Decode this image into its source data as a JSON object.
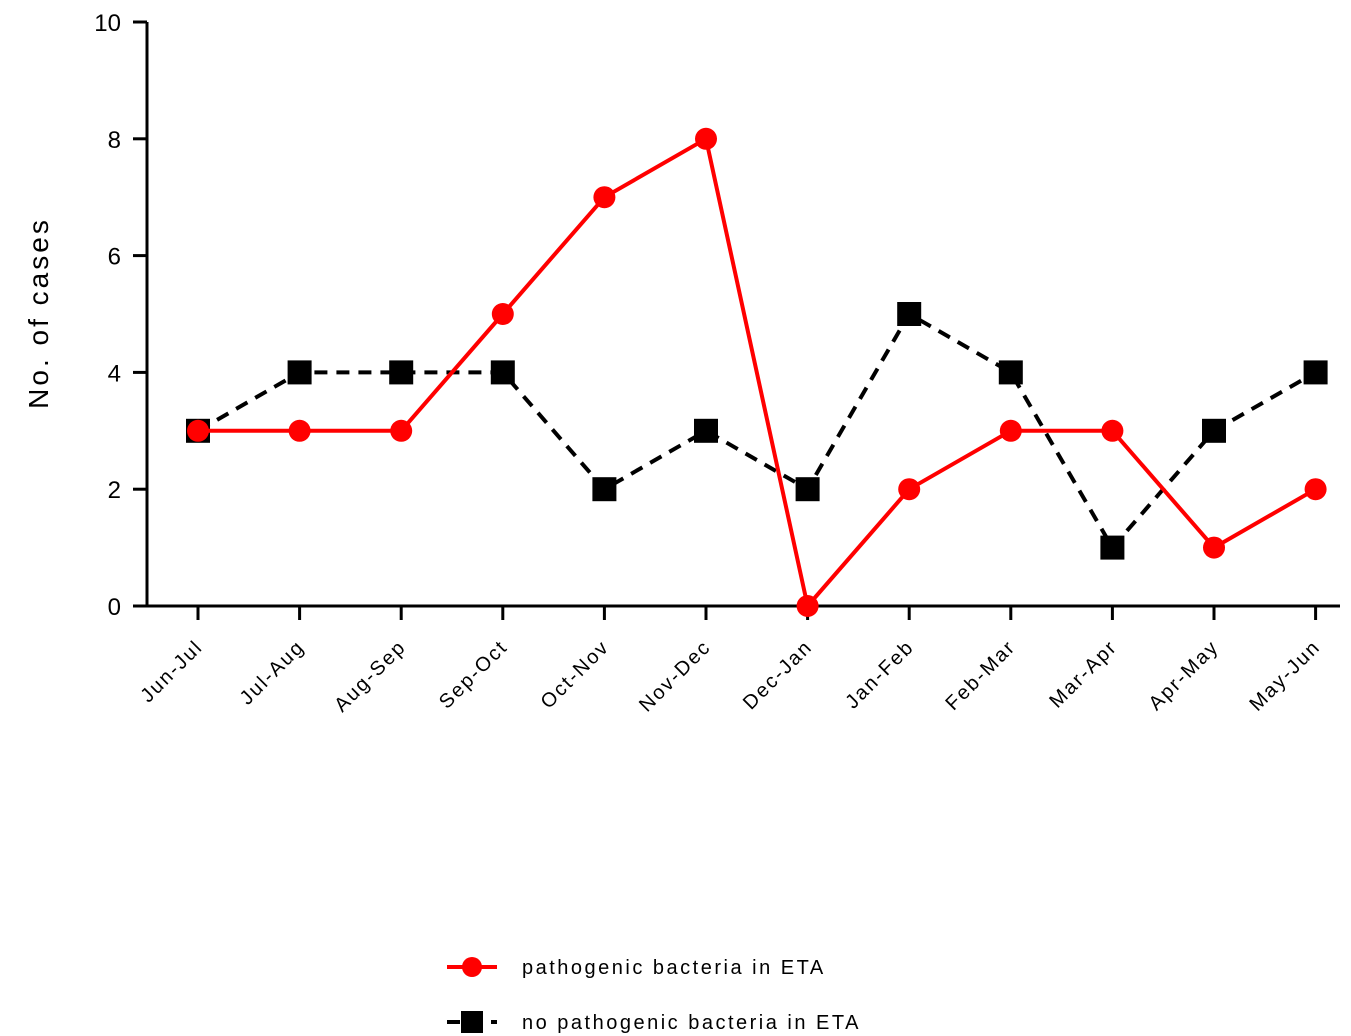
{
  "chart_data": {
    "type": "line",
    "title": "",
    "xlabel": "",
    "ylabel": "No. of cases",
    "ylim": [
      0,
      10
    ],
    "yticks": [
      0,
      2,
      4,
      6,
      8,
      10
    ],
    "categories": [
      "Jun-Jul",
      "Jul-Aug",
      "Aug-Sep",
      "Sep-Oct",
      "Oct-Nov",
      "Nov-Dec",
      "Dec-Jan",
      "Jan-Feb",
      "Feb-Mar",
      "Mar-Apr",
      "Apr-May",
      "May-Jun"
    ],
    "grid": false,
    "legend_position": "bottom-center",
    "series": [
      {
        "name": "pathogenic bacteria in ETA",
        "values": [
          3,
          3,
          3,
          5,
          7,
          8,
          0,
          2,
          3,
          3,
          1,
          2
        ],
        "color": "#ff0000",
        "marker": "circle",
        "line_style": "solid"
      },
      {
        "name": "no pathogenic bacteria in ETA",
        "values": [
          3,
          4,
          4,
          4,
          2,
          3,
          2,
          5,
          4,
          1,
          3,
          4
        ],
        "color": "#000000",
        "marker": "square",
        "line_style": "dashed"
      }
    ]
  }
}
